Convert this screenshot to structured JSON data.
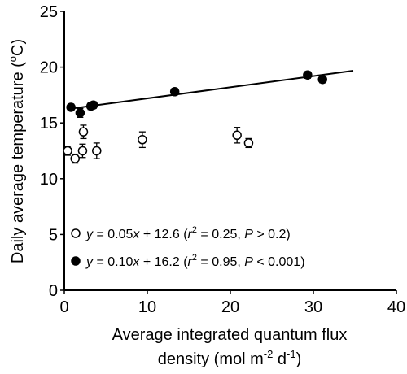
{
  "chart_data": {
    "type": "scatter",
    "title": "",
    "xlabel_line1": "Average integrated quantum flux",
    "xlabel_line2_prefix": "density (mol m",
    "xlabel_line2_sup1": "-2",
    "xlabel_line2_mid": " d",
    "xlabel_line2_sup2": "-1",
    "xlabel_line2_suffix": ")",
    "ylabel_prefix": "Daily average temperature (",
    "ylabel_sup": "o",
    "ylabel_suffix": "C)",
    "xlim": [
      0,
      40
    ],
    "ylim": [
      0,
      25
    ],
    "xticks": [
      0,
      10,
      20,
      30,
      40
    ],
    "yticks": [
      0,
      5,
      10,
      15,
      20,
      25
    ],
    "grid": false,
    "legend_placement": "bottom-left",
    "series": [
      {
        "marker": "open-circle",
        "points": [
          {
            "x": 0.4,
            "y": 12.5,
            "err": 0.4
          },
          {
            "x": 1.3,
            "y": 11.8,
            "err": 0.4
          },
          {
            "x": 2.2,
            "y": 12.5,
            "err": 0.6
          },
          {
            "x": 2.3,
            "y": 14.2,
            "err": 0.6
          },
          {
            "x": 3.9,
            "y": 12.5,
            "err": 0.7
          },
          {
            "x": 9.4,
            "y": 13.5,
            "err": 0.7
          },
          {
            "x": 20.8,
            "y": 13.9,
            "err": 0.7
          },
          {
            "x": 22.2,
            "y": 13.2,
            "err": 0.4
          }
        ],
        "fit": null,
        "legend": {
          "y": "y",
          "eq1": " = 0.05",
          "x": "x",
          "eq2": " + 12.6 (",
          "r": "r",
          "r_sup": "2",
          "eq3": " = 0.25, ",
          "p": "P",
          "eq4": " > 0.2)"
        }
      },
      {
        "marker": "filled-circle",
        "points": [
          {
            "x": 0.8,
            "y": 16.4,
            "err": 0.3
          },
          {
            "x": 1.9,
            "y": 15.9,
            "err": 0.4
          },
          {
            "x": 3.2,
            "y": 16.5,
            "err": 0.3
          },
          {
            "x": 3.5,
            "y": 16.6,
            "err": 0.3
          },
          {
            "x": 13.3,
            "y": 17.8,
            "err": 0.3
          },
          {
            "x": 29.3,
            "y": 19.3,
            "err": 0.3
          },
          {
            "x": 31.1,
            "y": 18.9,
            "err": 0.3
          }
        ],
        "fit": {
          "slope": 0.1,
          "intercept": 16.2,
          "x_from": 0.8,
          "x_to": 34.8
        },
        "legend": {
          "y": "y",
          "eq1": " = 0.10",
          "x": "x",
          "eq2": " + 16.2 (",
          "r": "r",
          "r_sup": "2",
          "eq3": " = 0.95, ",
          "p": "P",
          "eq4": " < 0.001)"
        }
      }
    ]
  }
}
